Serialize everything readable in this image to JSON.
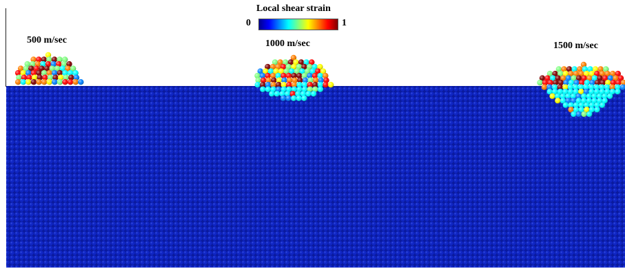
{
  "colorbar": {
    "title": "Local shear strain",
    "min_label": "0",
    "max_label": "1",
    "colors": [
      "#00008f",
      "#0000ff",
      "#0080ff",
      "#00ffff",
      "#80ff80",
      "#ffff00",
      "#ff8000",
      "#ff0000",
      "#800000"
    ]
  },
  "impacts": [
    {
      "label": "500 m/sec"
    },
    {
      "label": "1000 m/sec"
    },
    {
      "label": "1500 m/sec"
    }
  ],
  "colors": {
    "substrate": "#0a1a9e",
    "substrate_dark": "#050c5a",
    "background": "#ffffff"
  }
}
